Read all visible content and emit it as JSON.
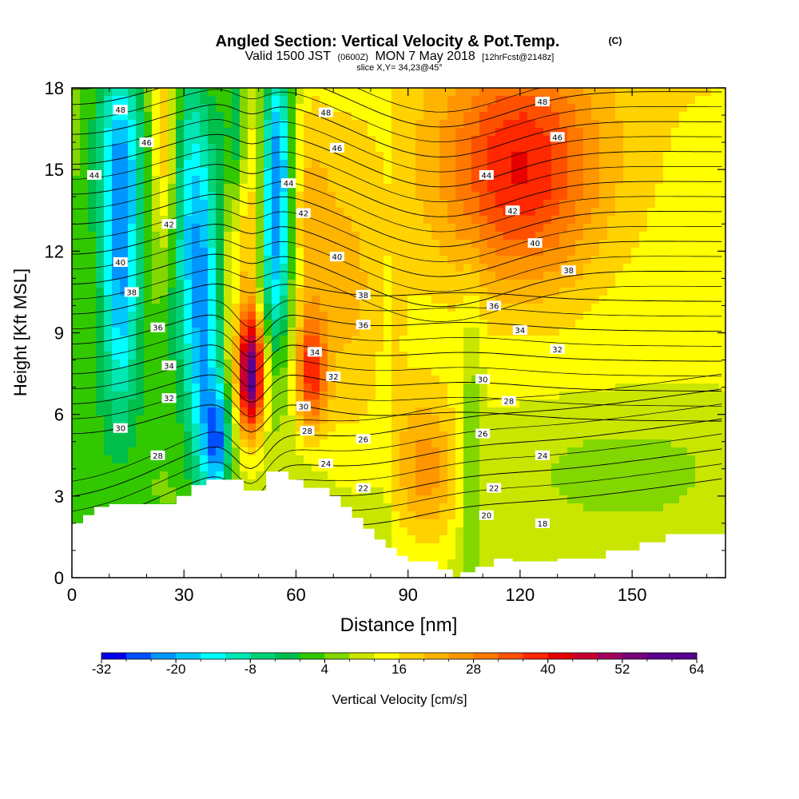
{
  "header": {
    "title": "Angled Section: Vertical Velocity & Pot.Temp.",
    "title_mark": "(C)",
    "valid_prefix": "Valid 1500 JST",
    "valid_utc": "(0600Z)",
    "valid_date": "MON 7 May 2018",
    "forecast": "[12hrFcst@2148z]",
    "slice": "slice X,Y= 34,23@45°"
  },
  "chart_data": {
    "type": "heatmap",
    "title": "Angled Section: Vertical Velocity & Pot.Temp.",
    "xlabel": "Distance [nm]",
    "ylabel": "Height [Kft MSL]",
    "xlim": [
      0,
      175
    ],
    "ylim": [
      0,
      18
    ],
    "x_ticks": [
      0,
      30,
      60,
      90,
      120,
      150
    ],
    "x_tick_labels": [
      "0",
      "30",
      "60",
      "90",
      "120",
      "150"
    ],
    "y_ticks": [
      0,
      3,
      6,
      9,
      12,
      15,
      18
    ],
    "y_tick_labels": [
      "0",
      "3",
      "6",
      "9",
      "12",
      "15",
      "18"
    ],
    "terrain": [
      [
        0,
        2
      ],
      [
        3,
        2
      ],
      [
        3,
        2.3
      ],
      [
        6,
        2.3
      ],
      [
        6,
        2.6
      ],
      [
        10,
        2.6
      ],
      [
        10,
        2.7
      ],
      [
        25,
        2.7
      ],
      [
        28,
        2.7
      ],
      [
        28,
        3
      ],
      [
        32,
        3
      ],
      [
        32,
        3.4
      ],
      [
        36,
        3.4
      ],
      [
        36,
        3.6
      ],
      [
        46,
        3.6
      ],
      [
        46,
        3.2
      ],
      [
        52,
        3.2
      ],
      [
        52,
        3.9
      ],
      [
        58,
        3.9
      ],
      [
        58,
        3.6
      ],
      [
        62,
        3.6
      ],
      [
        62,
        3.3
      ],
      [
        69,
        3.3
      ],
      [
        69,
        3.0
      ],
      [
        72,
        3.0
      ],
      [
        72,
        2.6
      ],
      [
        75,
        2.6
      ],
      [
        75,
        2.2
      ],
      [
        78,
        2.2
      ],
      [
        78,
        1.8
      ],
      [
        81,
        1.8
      ],
      [
        81,
        1.4
      ],
      [
        84,
        1.4
      ],
      [
        84,
        1.1
      ],
      [
        87,
        1.1
      ],
      [
        87,
        0.8
      ],
      [
        90,
        0.8
      ],
      [
        90,
        0.6
      ],
      [
        98,
        0.6
      ],
      [
        98,
        0.3
      ],
      [
        102,
        0.3
      ],
      [
        102,
        0
      ],
      [
        104,
        0
      ],
      [
        104,
        0.2
      ],
      [
        108,
        0.2
      ],
      [
        108,
        0.4
      ],
      [
        113,
        0.4
      ],
      [
        113,
        0.7
      ],
      [
        118,
        0.7
      ],
      [
        118,
        0.6
      ],
      [
        130,
        0.6
      ],
      [
        130,
        0.7
      ],
      [
        143,
        0.7
      ],
      [
        143,
        1.0
      ],
      [
        152,
        1.0
      ],
      [
        152,
        1.3
      ],
      [
        159,
        1.3
      ],
      [
        159,
        1.6
      ],
      [
        175,
        1.6
      ]
    ],
    "velocity_field": {
      "description_units": "cm/s",
      "features": [
        {
          "x": 13,
          "y": 11,
          "sx": 3.5,
          "sy": 3.5,
          "value": -22
        },
        {
          "x": 13,
          "y": 16,
          "sx": 5,
          "sy": 2.5,
          "value": -16
        },
        {
          "x": 30,
          "y": 14,
          "sx": 3,
          "sy": 4,
          "value": -14
        },
        {
          "x": 35,
          "y": 10,
          "sx": 3,
          "sy": 5,
          "value": -22
        },
        {
          "x": 39,
          "y": 5,
          "sx": 2.5,
          "sy": 1.5,
          "value": -24
        },
        {
          "x": 55,
          "y": 15.5,
          "sx": 3,
          "sy": 3,
          "value": -30
        },
        {
          "x": 54,
          "y": 11,
          "sx": 4,
          "sy": 2.5,
          "value": -18
        },
        {
          "x": 44,
          "y": 16.5,
          "sx": 2.5,
          "sy": 2,
          "value": -14
        },
        {
          "x": 48,
          "y": 7.5,
          "sx": 2.5,
          "sy": 1.5,
          "value": 48
        },
        {
          "x": 48,
          "y": 12,
          "sx": 3,
          "sy": 4,
          "value": 18
        },
        {
          "x": 64,
          "y": 7.5,
          "sx": 3,
          "sy": 1.5,
          "value": 28
        },
        {
          "x": 25,
          "y": 16,
          "sx": 3,
          "sy": 3,
          "value": 18
        },
        {
          "x": 62,
          "y": 13,
          "sx": 5,
          "sy": 3,
          "value": 14
        },
        {
          "x": 120,
          "y": 15,
          "sx": 15,
          "sy": 3,
          "value": 30
        },
        {
          "x": 95,
          "y": 4,
          "sx": 6,
          "sy": 2,
          "value": 18
        },
        {
          "x": 107,
          "y": 5,
          "sx": 2,
          "sy": 4,
          "value": -4
        },
        {
          "x": 148,
          "y": 4,
          "sx": 20,
          "sy": 1.5,
          "value": -2
        },
        {
          "x": 148,
          "y": 8,
          "sx": 10,
          "sy": 3,
          "value": 4
        },
        {
          "x": 35,
          "y": 3,
          "sx": 20,
          "sy": 2,
          "value": 4
        },
        {
          "x": 75,
          "y": 10,
          "sx": 8,
          "sy": 5,
          "value": 14
        }
      ]
    },
    "colorbar": {
      "label": "Vertical Velocity [cm/s]",
      "min": -32,
      "max": 64,
      "step": 4,
      "tick_values": [
        -32,
        -20,
        -8,
        4,
        16,
        28,
        40,
        52,
        64
      ],
      "tick_labels": [
        "-32",
        "-20",
        "-8",
        "4",
        "16",
        "28",
        "40",
        "52",
        "64"
      ],
      "colors": [
        "#0000ee",
        "#0050ff",
        "#0096ff",
        "#00c8ff",
        "#00ffff",
        "#00e6b4",
        "#00d27a",
        "#00be4a",
        "#32c800",
        "#82d700",
        "#c8e600",
        "#ffff00",
        "#ffd200",
        "#ffb400",
        "#ff9600",
        "#ff7800",
        "#ff5000",
        "#ff2800",
        "#e60000",
        "#c80032",
        "#a0005a",
        "#780078",
        "#5a0090",
        "#5a0090"
      ]
    },
    "isentropes": {
      "units": "C",
      "levels": [
        18,
        20,
        22,
        24,
        26,
        28,
        30,
        32,
        34,
        36,
        38,
        40,
        42,
        44,
        46,
        48
      ],
      "labels": [
        {
          "text": "48",
          "x": 13,
          "y": 17.2
        },
        {
          "text": "46",
          "x": 20,
          "y": 16.0
        },
        {
          "text": "44",
          "x": 6,
          "y": 14.8
        },
        {
          "text": "42",
          "x": 26,
          "y": 13.0
        },
        {
          "text": "40",
          "x": 13,
          "y": 11.6
        },
        {
          "text": "38",
          "x": 16,
          "y": 10.5
        },
        {
          "text": "36",
          "x": 23,
          "y": 9.2
        },
        {
          "text": "34",
          "x": 26,
          "y": 7.8
        },
        {
          "text": "32",
          "x": 26,
          "y": 6.6
        },
        {
          "text": "30",
          "x": 13,
          "y": 5.5
        },
        {
          "text": "28",
          "x": 23,
          "y": 4.5
        },
        {
          "text": "48",
          "x": 68,
          "y": 17.1
        },
        {
          "text": "46",
          "x": 71,
          "y": 15.8
        },
        {
          "text": "44",
          "x": 58,
          "y": 14.5
        },
        {
          "text": "42",
          "x": 62,
          "y": 13.4
        },
        {
          "text": "40",
          "x": 71,
          "y": 11.8
        },
        {
          "text": "38",
          "x": 78,
          "y": 10.4
        },
        {
          "text": "36",
          "x": 78,
          "y": 9.3
        },
        {
          "text": "34",
          "x": 65,
          "y": 8.3
        },
        {
          "text": "32",
          "x": 70,
          "y": 7.4
        },
        {
          "text": "30",
          "x": 62,
          "y": 6.3
        },
        {
          "text": "28",
          "x": 63,
          "y": 5.4
        },
        {
          "text": "26",
          "x": 78,
          "y": 5.1
        },
        {
          "text": "24",
          "x": 68,
          "y": 4.2
        },
        {
          "text": "22",
          "x": 78,
          "y": 3.3
        },
        {
          "text": "48",
          "x": 126,
          "y": 17.5
        },
        {
          "text": "46",
          "x": 130,
          "y": 16.2
        },
        {
          "text": "44",
          "x": 111,
          "y": 14.8
        },
        {
          "text": "42",
          "x": 118,
          "y": 13.5
        },
        {
          "text": "40",
          "x": 124,
          "y": 12.3
        },
        {
          "text": "38",
          "x": 133,
          "y": 11.3
        },
        {
          "text": "36",
          "x": 113,
          "y": 10.0
        },
        {
          "text": "34",
          "x": 120,
          "y": 9.1
        },
        {
          "text": "32",
          "x": 130,
          "y": 8.4
        },
        {
          "text": "30",
          "x": 110,
          "y": 7.3
        },
        {
          "text": "28",
          "x": 117,
          "y": 6.5
        },
        {
          "text": "26",
          "x": 110,
          "y": 5.3
        },
        {
          "text": "24",
          "x": 126,
          "y": 4.5
        },
        {
          "text": "22",
          "x": 113,
          "y": 3.3
        },
        {
          "text": "20",
          "x": 111,
          "y": 2.3
        },
        {
          "text": "18",
          "x": 126,
          "y": 2.0
        }
      ]
    }
  }
}
